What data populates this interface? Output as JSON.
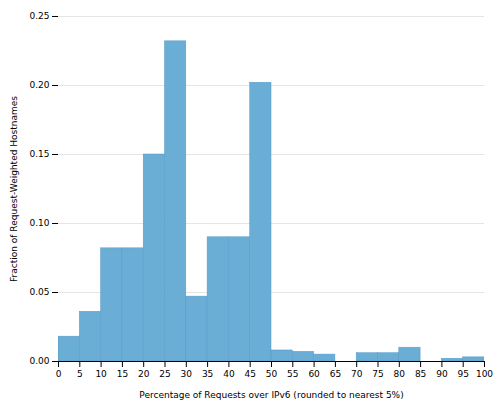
{
  "chart_data": {
    "type": "histogram",
    "bins": [
      0,
      5,
      10,
      15,
      20,
      25,
      30,
      35,
      40,
      45,
      50,
      55,
      60,
      65,
      70,
      75,
      80,
      85,
      90,
      95,
      100
    ],
    "values": [
      0.018,
      0.036,
      0.082,
      0.082,
      0.15,
      0.232,
      0.047,
      0.09,
      0.09,
      0.202,
      0.008,
      0.007,
      0.005,
      0.0,
      0.006,
      0.006,
      0.01,
      0.0,
      0.002,
      0.003
    ],
    "color": "#6aaed6",
    "xlabel": "Percentage of Requests over IPv6 (rounded to nearest 5%)",
    "ylabel": "Fraction of Request-Weighted Hostnames",
    "xlim": [
      0,
      100
    ],
    "ylim": [
      0,
      0.25
    ],
    "xticks": [
      0,
      5,
      10,
      15,
      20,
      25,
      30,
      35,
      40,
      45,
      50,
      55,
      60,
      65,
      70,
      75,
      80,
      85,
      90,
      95,
      100
    ],
    "yticks": [
      {
        "value": 0,
        "label": "0.00"
      },
      0.05,
      {
        "value": 0.1,
        "label": "0.10"
      },
      0.15,
      {
        "value": 0.2,
        "label": "0.20"
      },
      0.25
    ],
    "grid": true
  }
}
